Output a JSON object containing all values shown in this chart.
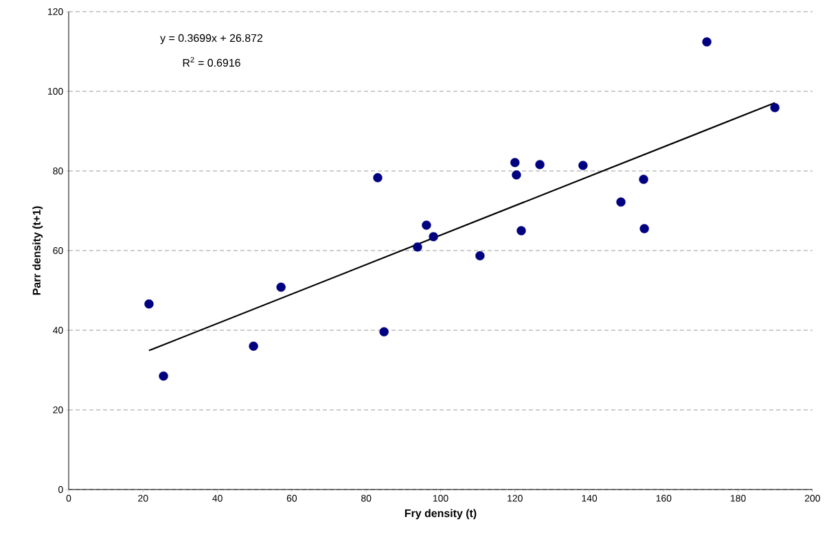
{
  "chart_data": {
    "type": "scatter",
    "xlabel": "Fry density (t)",
    "ylabel": "Parr density (t+1)",
    "annotations": [
      "y = 0.3699x + 26.872",
      "R$^{2}$ = 0.6916"
    ],
    "series": [
      {
        "color": "#000080",
        "marker": "circle",
        "x": [
          21.6,
          25.5,
          49.7,
          57.1,
          83.1,
          84.8,
          93.8,
          96.2,
          98.1,
          110.6,
          120.0,
          120.4,
          121.7,
          126.7,
          138.3,
          148.5,
          154.6,
          154.8,
          171.6,
          189.9
        ],
        "values": [
          46.6,
          28.5,
          36.0,
          50.8,
          78.3,
          39.6,
          60.9,
          66.4,
          63.5,
          58.7,
          82.1,
          79.0,
          65.0,
          81.6,
          81.4,
          72.2,
          77.9,
          65.5,
          112.4,
          95.9
        ]
      },
      {
        "type": "line",
        "color": "#000000",
        "marker": "none",
        "x": [
          21.6,
          189.9
        ],
        "values": [
          34.9,
          97.1
        ]
      }
    ],
    "xlim": [
      0,
      200
    ],
    "xticks": [
      0,
      20,
      40,
      60,
      80,
      100,
      120,
      140,
      160,
      180,
      200
    ],
    "ylim": [
      0,
      120
    ],
    "yticks": [
      0,
      20,
      40,
      60,
      80,
      100,
      120
    ],
    "grid": "y"
  }
}
